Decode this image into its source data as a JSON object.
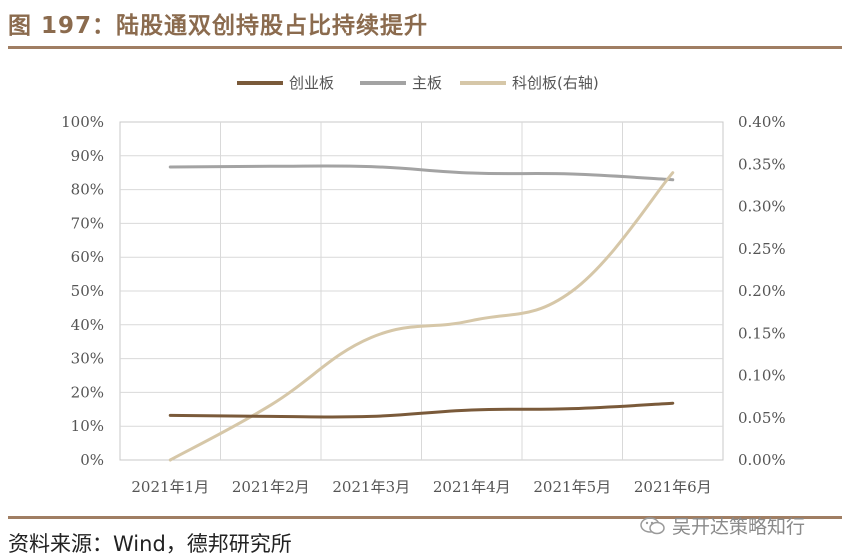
{
  "header": {
    "title": "图 197：陆股通双创持股占比持续提升"
  },
  "footer": {
    "source": "资料来源：Wind，德邦研究所",
    "watermark": "吴开达策略知行"
  },
  "colors": {
    "chinext": "#7a5a3a",
    "main": "#a3a3a3",
    "star": "#d6c7a8",
    "rule": "#a07e63",
    "plot_bg": "#ffffff"
  },
  "chart_data": {
    "type": "line",
    "x": [
      "2021年1月",
      "2021年2月",
      "2021年3月",
      "2021年4月",
      "2021年5月",
      "2021年6月"
    ],
    "y_left_ticks": [
      "0%",
      "10%",
      "20%",
      "30%",
      "40%",
      "50%",
      "60%",
      "70%",
      "80%",
      "90%",
      "100%"
    ],
    "y_right_ticks": [
      "0.00%",
      "0.05%",
      "0.10%",
      "0.15%",
      "0.20%",
      "0.25%",
      "0.30%",
      "0.35%",
      "0.40%"
    ],
    "ylim_left": [
      0,
      100
    ],
    "ylim_right": [
      0,
      0.4
    ],
    "grid": true,
    "legend_position": "top-center",
    "series": [
      {
        "name": "创业板",
        "axis": "left",
        "values": [
          13.2,
          12.9,
          12.9,
          14.8,
          15.2,
          16.8
        ]
      },
      {
        "name": "主板",
        "axis": "left",
        "values": [
          86.7,
          86.9,
          86.8,
          84.9,
          84.6,
          82.9
        ]
      },
      {
        "name": "科创板(右轴)",
        "axis": "right",
        "values": [
          0.0,
          0.065,
          0.145,
          0.165,
          0.2,
          0.34
        ]
      }
    ]
  }
}
